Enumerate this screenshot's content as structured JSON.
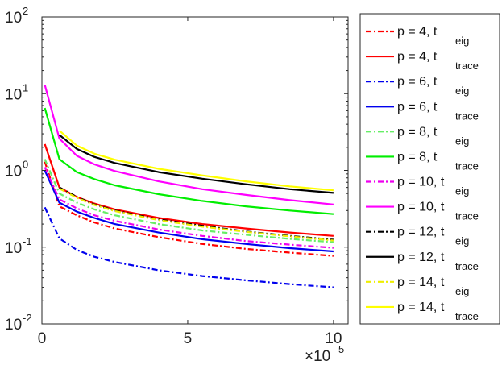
{
  "chart_data": {
    "type": "line",
    "title": "",
    "xlabel": "",
    "ylabel": "",
    "yscale": "log",
    "xlim": [
      0,
      1050000
    ],
    "ylim": [
      0.01,
      100
    ],
    "grid": false,
    "legend_position": "right-outside",
    "x_ticks": [
      {
        "value": 0,
        "label": "0"
      },
      {
        "value": 500000,
        "label": "5"
      },
      {
        "value": 1000000,
        "label": "10"
      }
    ],
    "x_multiplier": {
      "base": "×10",
      "exp": "5"
    },
    "y_ticks": [
      {
        "value": 0.01,
        "base": "10",
        "exp": "-2"
      },
      {
        "value": 0.1,
        "base": "10",
        "exp": "-1"
      },
      {
        "value": 1,
        "base": "10",
        "exp": "0"
      },
      {
        "value": 10,
        "base": "10",
        "exp": "1"
      },
      {
        "value": 100,
        "base": "10",
        "exp": "2"
      }
    ],
    "series": [
      {
        "label": "p = 4, t",
        "sub": "eig",
        "color": "#ff0000",
        "dash": "dashdot",
        "x": [
          10000,
          60000,
          120000,
          180000,
          250000,
          400000,
          550000,
          700000,
          850000,
          1000000
        ],
        "y": [
          1.3,
          0.34,
          0.26,
          0.21,
          0.175,
          0.135,
          0.11,
          0.095,
          0.085,
          0.077
        ]
      },
      {
        "label": "p = 4, t",
        "sub": "trace",
        "color": "#ff0000",
        "dash": "solid",
        "x": [
          10000,
          60000,
          120000,
          180000,
          250000,
          400000,
          550000,
          700000,
          850000,
          1000000
        ],
        "y": [
          2.2,
          0.6,
          0.45,
          0.37,
          0.31,
          0.24,
          0.2,
          0.175,
          0.155,
          0.14
        ]
      },
      {
        "label": "p = 6, t",
        "sub": "eig",
        "color": "#0000ee",
        "dash": "dashdot",
        "x": [
          10000,
          60000,
          120000,
          180000,
          250000,
          400000,
          550000,
          700000,
          850000,
          1000000
        ],
        "y": [
          0.33,
          0.13,
          0.092,
          0.075,
          0.064,
          0.05,
          0.042,
          0.037,
          0.033,
          0.03
        ]
      },
      {
        "label": "p = 6, t",
        "sub": "trace",
        "color": "#0000ee",
        "dash": "solid",
        "x": [
          10000,
          60000,
          120000,
          180000,
          250000,
          400000,
          550000,
          700000,
          850000,
          1000000
        ],
        "y": [
          1.0,
          0.38,
          0.29,
          0.24,
          0.2,
          0.155,
          0.127,
          0.11,
          0.097,
          0.088
        ]
      },
      {
        "label": "p = 8, t",
        "sub": "eig",
        "color": "#66ee66",
        "dash": "dashdot",
        "x": [
          10000,
          60000,
          120000,
          180000,
          250000,
          400000,
          550000,
          700000,
          850000,
          1000000
        ],
        "y": [
          1.4,
          0.5,
          0.38,
          0.31,
          0.26,
          0.2,
          0.165,
          0.145,
          0.128,
          0.116
        ]
      },
      {
        "label": "p = 8, t",
        "sub": "trace",
        "color": "#00ee00",
        "dash": "solid",
        "x": [
          10000,
          60000,
          120000,
          180000,
          250000,
          400000,
          550000,
          700000,
          850000,
          1000000
        ],
        "y": [
          6.5,
          1.4,
          0.95,
          0.77,
          0.64,
          0.49,
          0.4,
          0.34,
          0.3,
          0.27
        ]
      },
      {
        "label": "p = 10, t",
        "sub": "eig",
        "color": "#ee00ee",
        "dash": "dashdot",
        "x": [
          10000,
          60000,
          120000,
          180000,
          250000,
          400000,
          550000,
          700000,
          850000,
          1000000
        ],
        "y": [
          1.1,
          0.42,
          0.32,
          0.26,
          0.22,
          0.17,
          0.14,
          0.12,
          0.108,
          0.098
        ]
      },
      {
        "label": "p = 10, t",
        "sub": "trace",
        "color": "#ff00ff",
        "dash": "solid",
        "x": [
          10000,
          60000,
          120000,
          180000,
          250000,
          400000,
          550000,
          700000,
          850000,
          1000000
        ],
        "y": [
          13,
          2.6,
          1.55,
          1.2,
          0.98,
          0.72,
          0.57,
          0.48,
          0.41,
          0.36
        ]
      },
      {
        "label": "p = 12, t",
        "sub": "eig",
        "color": "#000000",
        "dash": "dashdot",
        "x": [
          60000,
          120000,
          180000,
          250000,
          400000,
          550000,
          700000,
          850000,
          1000000
        ],
        "y": [
          0.6,
          0.45,
          0.36,
          0.3,
          0.23,
          0.19,
          0.16,
          0.14,
          0.125
        ]
      },
      {
        "label": "p = 12, t",
        "sub": "trace",
        "color": "#000000",
        "dash": "solid",
        "x": [
          60000,
          120000,
          180000,
          250000,
          400000,
          550000,
          700000,
          850000,
          1000000
        ],
        "y": [
          2.9,
          1.9,
          1.5,
          1.25,
          0.95,
          0.78,
          0.66,
          0.57,
          0.51
        ]
      },
      {
        "label": "p = 14, t",
        "sub": "eig",
        "color": "#eeee00",
        "dash": "dashdot",
        "x": [
          60000,
          120000,
          180000,
          250000,
          400000,
          550000,
          700000,
          850000,
          1000000
        ],
        "y": [
          0.58,
          0.44,
          0.355,
          0.295,
          0.225,
          0.185,
          0.158,
          0.138,
          0.122
        ]
      },
      {
        "label": "p = 14, t",
        "sub": "trace",
        "color": "#ffff00",
        "dash": "solid",
        "x": [
          60000,
          120000,
          180000,
          250000,
          400000,
          550000,
          700000,
          850000,
          1000000
        ],
        "y": [
          3.3,
          2.1,
          1.65,
          1.38,
          1.05,
          0.86,
          0.72,
          0.62,
          0.55
        ]
      }
    ]
  }
}
